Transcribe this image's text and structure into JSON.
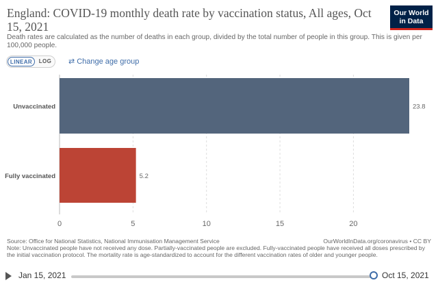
{
  "header": {
    "title": "England: COVID-19 monthly death rate by vaccination status, All ages, Oct 15, 2021",
    "subtitle": "Death rates are calculated as the number of deaths in each group, divided by the total number of people in this group. This is given per 100,000 people.",
    "logo": "Our World in Data"
  },
  "controls": {
    "linear_label": "LINEAR",
    "log_label": "LOG",
    "active_scale": "linear",
    "change_age_label": "Change age group",
    "change_age_icon": "swap-arrows-icon"
  },
  "chart_data": {
    "type": "bar",
    "orientation": "horizontal",
    "categories": [
      "Unvaccinated",
      "Fully vaccinated"
    ],
    "values": [
      23.8,
      5.2
    ],
    "value_labels": [
      "23.8",
      "5.2"
    ],
    "colors": [
      "#53657c",
      "#bc4435"
    ],
    "xlim": [
      0,
      23.8
    ],
    "xticks": [
      0,
      5,
      10,
      15,
      20
    ],
    "grid": "vertical dashed",
    "title": "England: COVID-19 monthly death rate by vaccination status, All ages, Oct 15, 2021"
  },
  "footer": {
    "source": "Source: Office for National Statistics, National Immunisation Management Service",
    "note": "Note: Unvaccinated people have not received any dose. Partially-vaccinated people are excluded. Fully-vaccinated people have received all doses prescribed by the initial vaccination protocol. The mortality rate is age-standardized to account for the different vaccination rates of older and younger people.",
    "credit": "OurWorldInData.org/coronavirus • CC BY"
  },
  "timeline": {
    "start_date": "Jan 15, 2021",
    "end_date": "Oct 15, 2021",
    "position": 1.0,
    "play_icon": "play-icon"
  }
}
